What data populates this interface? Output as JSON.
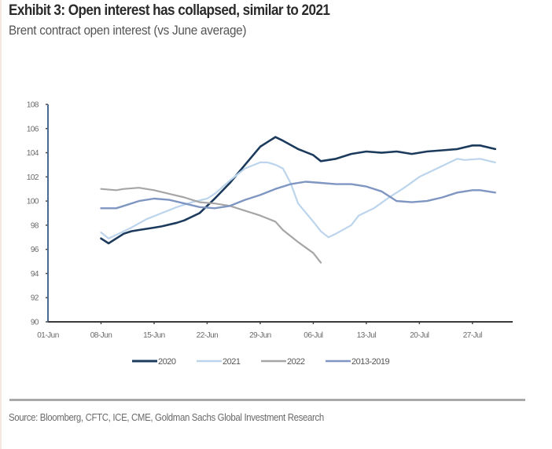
{
  "header": {
    "title": "Exhibit 3: Open interest has collapsed, similar to 2021",
    "subtitle": "Brent contract open interest (vs June average)"
  },
  "footer": {
    "source": "Source: Bloomberg, CFTC, ICE, CME, Goldman Sachs Global Investment Research"
  },
  "chart_data": {
    "type": "line",
    "title": "Exhibit 3: Open interest has collapsed, similar to 2021",
    "subtitle": "Brent contract open interest (vs June average)",
    "xlabel": "",
    "ylabel": "",
    "x_unit": "days since 01-Jun",
    "xlim": [
      0,
      61
    ],
    "ylim": [
      90,
      108
    ],
    "yticks": [
      90,
      92,
      94,
      96,
      98,
      100,
      102,
      104,
      106,
      108
    ],
    "xticks": [
      {
        "day": 0,
        "label": "01-Jun"
      },
      {
        "day": 7,
        "label": "08-Jun"
      },
      {
        "day": 14,
        "label": "15-Jun"
      },
      {
        "day": 21,
        "label": "22-Jun"
      },
      {
        "day": 28,
        "label": "29-Jun"
      },
      {
        "day": 35,
        "label": "06-Jul"
      },
      {
        "day": 42,
        "label": "13-Jul"
      },
      {
        "day": 49,
        "label": "20-Jul"
      },
      {
        "day": 56,
        "label": "27-Jul"
      }
    ],
    "grid": false,
    "legend_position": "bottom",
    "series": [
      {
        "name": "2020",
        "color": "#1b3a5c",
        "x": [
          7,
          8,
          9,
          10,
          11,
          12,
          14,
          15,
          17,
          18,
          20,
          21,
          22,
          24,
          26,
          28,
          29,
          30,
          31,
          33,
          35,
          36,
          38,
          40,
          42,
          44,
          46,
          48,
          50,
          52,
          54,
          56,
          57,
          59
        ],
        "values": [
          96.9,
          96.5,
          96.9,
          97.3,
          97.5,
          97.6,
          97.8,
          97.9,
          98.2,
          98.4,
          99.0,
          99.6,
          100.2,
          101.5,
          103.0,
          104.5,
          104.9,
          105.3,
          105.0,
          104.3,
          103.8,
          103.3,
          103.5,
          103.9,
          104.1,
          104.0,
          104.1,
          103.9,
          104.1,
          104.2,
          104.3,
          104.6,
          104.6,
          104.3
        ]
      },
      {
        "name": "2021",
        "color": "#bcd5ec",
        "x": [
          7,
          8,
          9,
          11,
          13,
          15,
          17,
          19,
          21,
          22,
          24,
          26,
          28,
          29,
          30,
          31,
          32,
          33,
          35,
          36,
          37,
          38,
          40,
          41,
          43,
          45,
          47,
          49,
          51,
          53,
          54,
          55,
          57,
          59
        ],
        "values": [
          97.4,
          96.9,
          97.2,
          97.8,
          98.5,
          99.0,
          99.5,
          99.9,
          100.2,
          100.6,
          101.7,
          102.7,
          103.2,
          103.2,
          103.0,
          102.7,
          101.5,
          99.8,
          98.3,
          97.5,
          97.0,
          97.3,
          98.0,
          98.8,
          99.4,
          100.3,
          101.1,
          102.0,
          102.6,
          103.2,
          103.5,
          103.4,
          103.5,
          103.2
        ]
      },
      {
        "name": "2022",
        "color": "#a6a6a6",
        "x": [
          7,
          9,
          10,
          12,
          14,
          16,
          18,
          20,
          22,
          24,
          26,
          28,
          30,
          31,
          33,
          35,
          36
        ],
        "values": [
          101.0,
          100.9,
          101.0,
          101.1,
          100.9,
          100.6,
          100.3,
          99.9,
          99.8,
          99.6,
          99.2,
          98.8,
          98.3,
          97.6,
          96.6,
          95.7,
          94.9
        ]
      },
      {
        "name": "2013-2019",
        "color": "#7f96c3",
        "x": [
          7,
          9,
          10,
          12,
          14,
          16,
          18,
          20,
          22,
          24,
          26,
          28,
          30,
          32,
          34,
          36,
          38,
          40,
          42,
          44,
          46,
          48,
          50,
          52,
          54,
          56,
          57,
          59
        ],
        "values": [
          99.4,
          99.4,
          99.6,
          100.0,
          100.2,
          100.1,
          99.8,
          99.5,
          99.4,
          99.6,
          100.1,
          100.5,
          101.0,
          101.4,
          101.6,
          101.5,
          101.4,
          101.4,
          101.2,
          100.8,
          100.0,
          99.9,
          100.0,
          100.3,
          100.7,
          100.9,
          100.9,
          100.7
        ]
      }
    ]
  }
}
